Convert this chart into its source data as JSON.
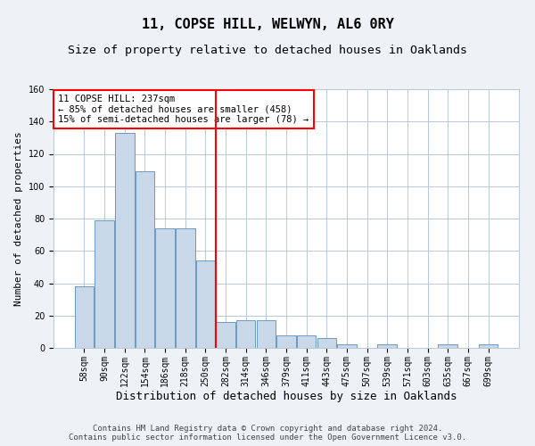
{
  "title1": "11, COPSE HILL, WELWYN, AL6 0RY",
  "title2": "Size of property relative to detached houses in Oaklands",
  "xlabel": "Distribution of detached houses by size in Oaklands",
  "ylabel": "Number of detached properties",
  "categories": [
    "58sqm",
    "90sqm",
    "122sqm",
    "154sqm",
    "186sqm",
    "218sqm",
    "250sqm",
    "282sqm",
    "314sqm",
    "346sqm",
    "379sqm",
    "411sqm",
    "443sqm",
    "475sqm",
    "507sqm",
    "539sqm",
    "571sqm",
    "603sqm",
    "635sqm",
    "667sqm",
    "699sqm"
  ],
  "values": [
    38,
    79,
    133,
    109,
    74,
    74,
    54,
    16,
    17,
    17,
    8,
    8,
    6,
    2,
    0,
    2,
    0,
    0,
    2,
    0,
    2
  ],
  "bar_color": "#c8d8e8",
  "bar_edge_color": "#6a9abf",
  "vline_x": 6.5,
  "vline_color": "red",
  "annotation_text": "11 COPSE HILL: 237sqm\n← 85% of detached houses are smaller (458)\n15% of semi-detached houses are larger (78) →",
  "annotation_box_color": "white",
  "annotation_box_edge": "red",
  "ylim": [
    0,
    160
  ],
  "yticks": [
    0,
    20,
    40,
    60,
    80,
    100,
    120,
    140,
    160
  ],
  "footer1": "Contains HM Land Registry data © Crown copyright and database right 2024.",
  "footer2": "Contains public sector information licensed under the Open Government Licence v3.0.",
  "bg_color": "#eef2f7",
  "plot_bg_color": "white",
  "grid_color": "#b8c8d8",
  "title1_fontsize": 11,
  "title2_fontsize": 9.5,
  "xlabel_fontsize": 9,
  "ylabel_fontsize": 8,
  "tick_fontsize": 7,
  "annotation_fontsize": 7.5,
  "footer_fontsize": 6.5
}
